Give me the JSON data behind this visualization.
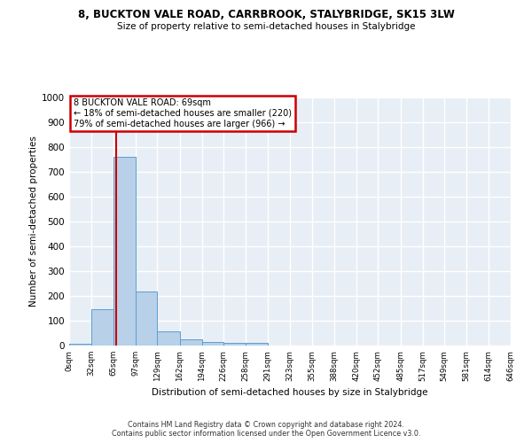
{
  "title1": "8, BUCKTON VALE ROAD, CARRBROOK, STALYBRIDGE, SK15 3LW",
  "title2": "Size of property relative to semi-detached houses in Stalybridge",
  "xlabel": "Distribution of semi-detached houses by size in Stalybridge",
  "ylabel": "Number of semi-detached properties",
  "footer": "Contains HM Land Registry data © Crown copyright and database right 2024.\nContains public sector information licensed under the Open Government Licence v3.0.",
  "bar_edges": [
    0,
    32,
    65,
    97,
    129,
    162,
    194,
    226,
    258,
    291,
    323,
    355,
    388,
    420,
    452,
    485,
    517,
    549,
    581,
    614,
    646
  ],
  "bar_values": [
    8,
    145,
    762,
    218,
    57,
    25,
    14,
    12,
    12,
    0,
    0,
    0,
    0,
    0,
    0,
    0,
    0,
    0,
    0,
    0
  ],
  "bar_color": "#b8d0e8",
  "bar_edge_color": "#5a9fd4",
  "property_size": 69,
  "property_line_color": "#cc0000",
  "annotation_line1": "8 BUCKTON VALE ROAD: 69sqm",
  "annotation_line2": "← 18% of semi-detached houses are smaller (220)",
  "annotation_line3": "79% of semi-detached houses are larger (966) →",
  "annotation_box_edgecolor": "#cc0000",
  "ylim": [
    0,
    1000
  ],
  "yticks": [
    0,
    100,
    200,
    300,
    400,
    500,
    600,
    700,
    800,
    900,
    1000
  ],
  "bg_color": "#e8eef5",
  "grid_color": "#ffffff",
  "tick_labels": [
    "0sqm",
    "32sqm",
    "65sqm",
    "97sqm",
    "129sqm",
    "162sqm",
    "194sqm",
    "226sqm",
    "258sqm",
    "291sqm",
    "323sqm",
    "355sqm",
    "388sqm",
    "420sqm",
    "452sqm",
    "485sqm",
    "517sqm",
    "549sqm",
    "581sqm",
    "614sqm",
    "646sqm"
  ]
}
